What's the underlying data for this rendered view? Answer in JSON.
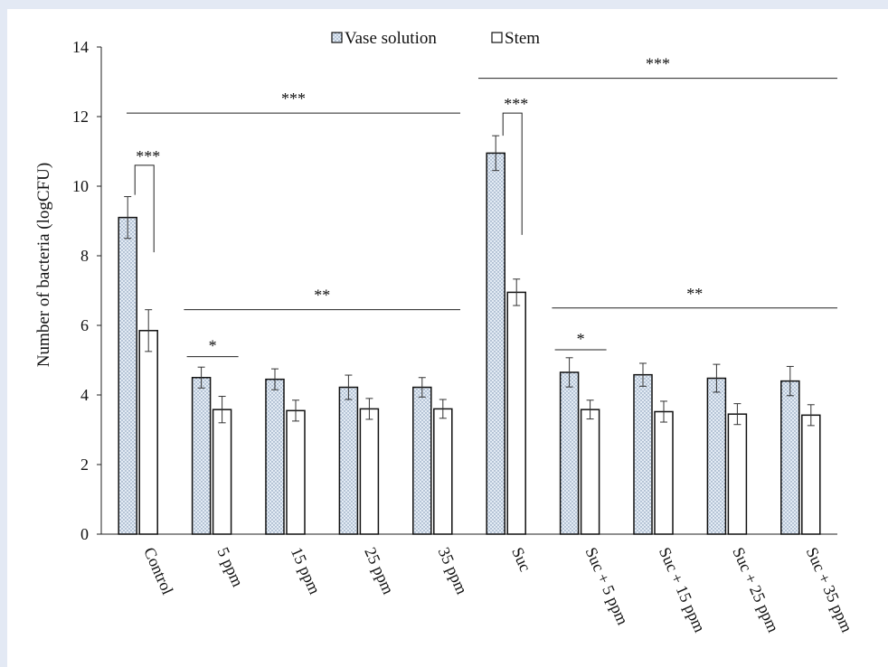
{
  "chart_data": {
    "type": "bar",
    "ylabel": "Number of bacteria (logCFU)",
    "ylim": [
      0,
      14
    ],
    "yticks": [
      0,
      2,
      4,
      6,
      8,
      10,
      12,
      14
    ],
    "grid": false,
    "legend_position": "top",
    "categories": [
      "Control",
      "5 ppm",
      "15 ppm",
      "25 ppm",
      "35 ppm",
      "Suc",
      "Suc + 5 ppm",
      "Suc + 15 ppm",
      "Suc + 25 ppm",
      "Suc + 35 ppm"
    ],
    "series": [
      {
        "name": "Vase solution",
        "pattern": "dotted",
        "color": "#e4ecf5",
        "values": [
          9.1,
          4.5,
          4.45,
          4.22,
          4.22,
          10.95,
          4.65,
          4.58,
          4.48,
          4.4
        ],
        "errors": [
          0.6,
          0.3,
          0.3,
          0.35,
          0.28,
          0.5,
          0.42,
          0.33,
          0.4,
          0.42
        ]
      },
      {
        "name": "Stem",
        "pattern": "solid",
        "color": "#ffffff",
        "values": [
          5.85,
          3.58,
          3.55,
          3.6,
          3.6,
          6.95,
          3.58,
          3.52,
          3.45,
          3.42
        ],
        "errors": [
          0.6,
          0.38,
          0.3,
          0.3,
          0.27,
          0.38,
          0.27,
          0.3,
          0.3,
          0.3
        ]
      }
    ],
    "annotations": [
      {
        "label": "***",
        "type": "bracket",
        "group": 0,
        "y1": 9.75,
        "y2": 8.1,
        "top": 10.6
      },
      {
        "label": "*",
        "type": "bar",
        "group": 1,
        "y": 5.1
      },
      {
        "label": "***",
        "type": "bracket",
        "group": 5,
        "y1": 11.45,
        "y2": 8.6,
        "top": 12.1
      },
      {
        "label": "*",
        "type": "bar",
        "group": 6,
        "y": 5.3
      },
      {
        "label": "***",
        "type": "line",
        "from_group": 0,
        "to_group": 4,
        "y": 12.1
      },
      {
        "label": "**",
        "type": "line",
        "from_group": 1,
        "to_group": 4,
        "y": 6.45
      },
      {
        "label": "***",
        "type": "line",
        "from_group": 5,
        "to_group": 9,
        "y": 13.1
      },
      {
        "label": "**",
        "type": "line",
        "from_group": 6,
        "to_group": 9,
        "y": 6.5
      }
    ]
  }
}
